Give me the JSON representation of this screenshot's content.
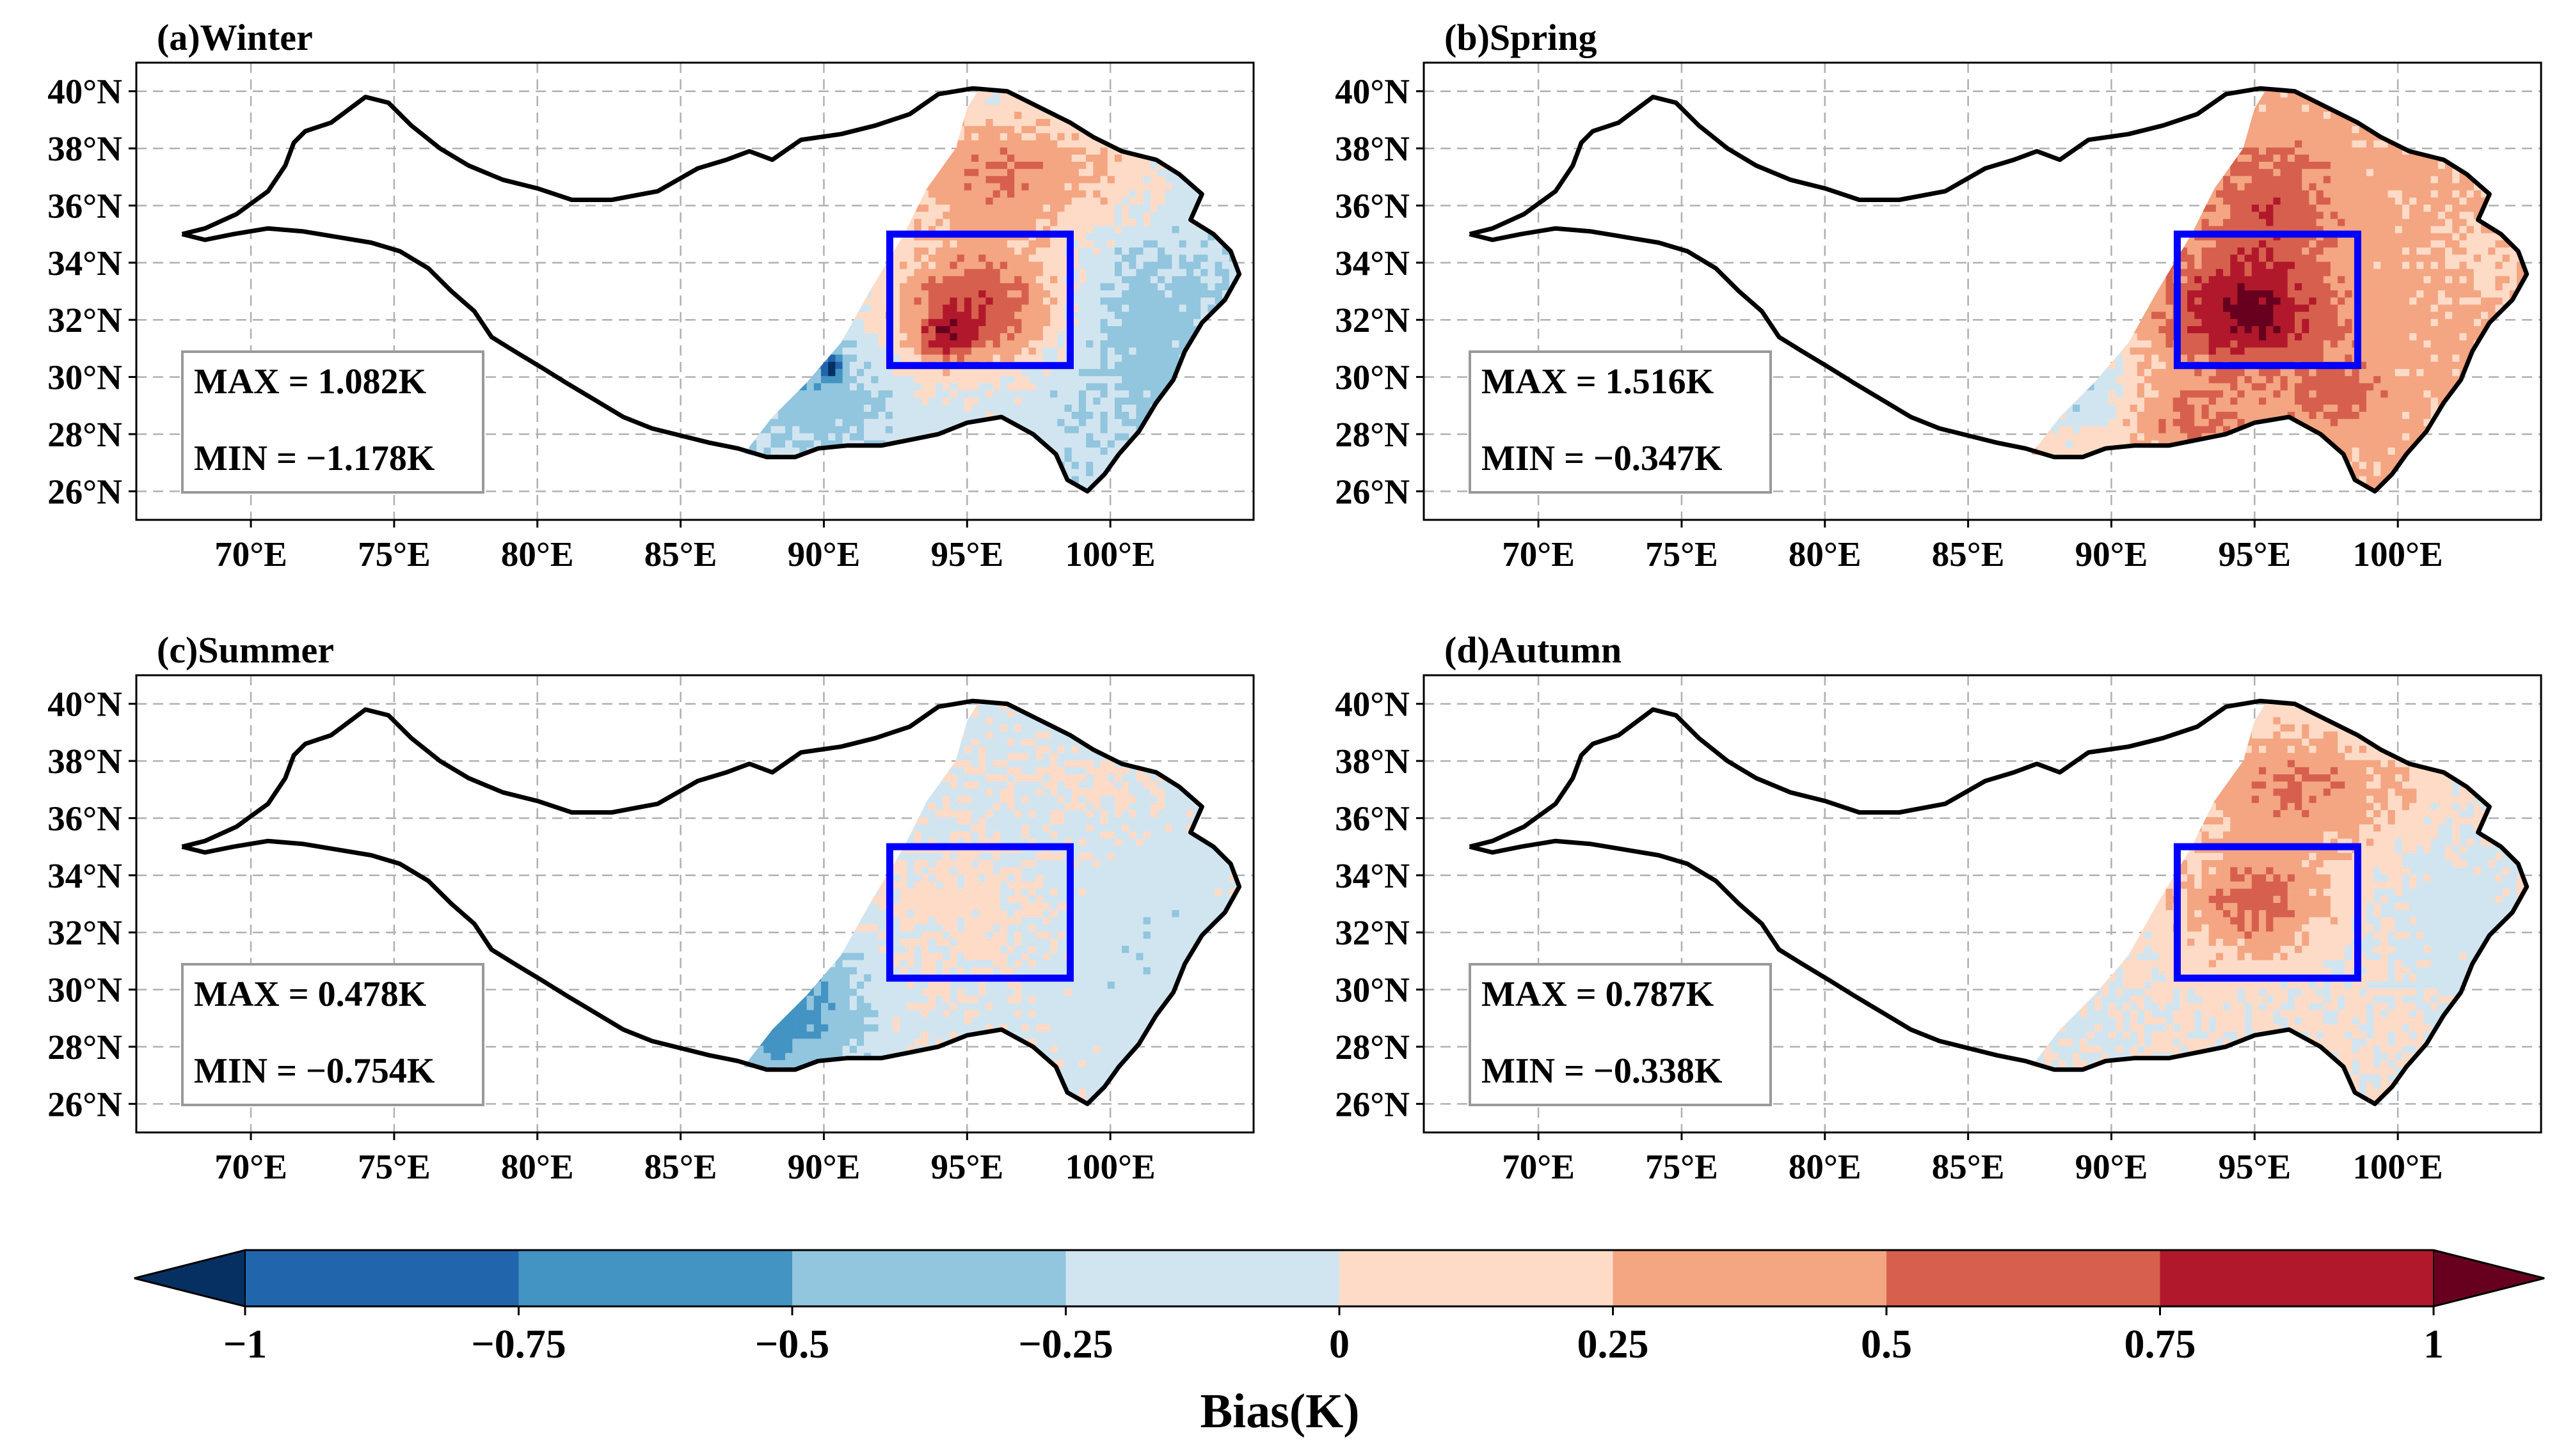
{
  "chart_data": {
    "type": "heatmap",
    "colorbar": {
      "label": "Bias(K)",
      "bounds": [
        -1,
        -0.75,
        -0.5,
        -0.25,
        0,
        0.25,
        0.5,
        0.75,
        1
      ],
      "tick_labels": [
        "−1",
        "−0.75",
        "−0.5",
        "−0.25",
        "0",
        "0.25",
        "0.5",
        "0.75",
        "1"
      ],
      "colors": [
        "#2166ac",
        "#4393c3",
        "#92c5de",
        "#d1e5f0",
        "#fddbc7",
        "#f4a582",
        "#d6604d",
        "#b2182b"
      ],
      "under_color": "#053061",
      "over_color": "#67001f"
    },
    "xlim": [
      66,
      105
    ],
    "ylim": [
      25,
      41
    ],
    "x_ticks": [
      70,
      75,
      80,
      85,
      90,
      95,
      100
    ],
    "x_tick_labels": [
      "70°E",
      "75°E",
      "80°E",
      "85°E",
      "90°E",
      "95°E",
      "100°E"
    ],
    "y_ticks": [
      26,
      28,
      30,
      32,
      34,
      36,
      38,
      40
    ],
    "y_tick_labels": [
      "26°N",
      "28°N",
      "30°N",
      "32°N",
      "34°N",
      "36°N",
      "38°N",
      "40°N"
    ],
    "grid": true,
    "region_box": {
      "lon": [
        92.3,
        98.6
      ],
      "lat": [
        30.4,
        35.0
      ],
      "color": "#0000ff"
    },
    "boundary": [
      [
        67.6,
        35.0
      ],
      [
        68.4,
        35.2
      ],
      [
        69.5,
        35.7
      ],
      [
        70.6,
        36.5
      ],
      [
        71.2,
        37.4
      ],
      [
        71.5,
        38.2
      ],
      [
        71.9,
        38.6
      ],
      [
        72.8,
        38.9
      ],
      [
        74.0,
        39.8
      ],
      [
        74.8,
        39.6
      ],
      [
        75.6,
        38.8
      ],
      [
        76.6,
        38.0
      ],
      [
        77.6,
        37.4
      ],
      [
        78.8,
        36.9
      ],
      [
        80.0,
        36.6
      ],
      [
        81.2,
        36.2
      ],
      [
        82.6,
        36.2
      ],
      [
        84.2,
        36.5
      ],
      [
        85.6,
        37.3
      ],
      [
        86.6,
        37.6
      ],
      [
        87.4,
        37.9
      ],
      [
        88.2,
        37.6
      ],
      [
        89.2,
        38.3
      ],
      [
        90.6,
        38.5
      ],
      [
        91.8,
        38.8
      ],
      [
        93.0,
        39.2
      ],
      [
        94.0,
        39.9
      ],
      [
        95.2,
        40.1
      ],
      [
        96.4,
        40.0
      ],
      [
        97.6,
        39.4
      ],
      [
        98.6,
        38.9
      ],
      [
        99.4,
        38.4
      ],
      [
        100.4,
        37.9
      ],
      [
        101.6,
        37.6
      ],
      [
        102.4,
        37.1
      ],
      [
        103.2,
        36.4
      ],
      [
        102.8,
        35.5
      ],
      [
        103.6,
        35.0
      ],
      [
        104.2,
        34.4
      ],
      [
        104.5,
        33.6
      ],
      [
        104.0,
        32.7
      ],
      [
        103.2,
        31.9
      ],
      [
        102.6,
        30.9
      ],
      [
        102.2,
        29.9
      ],
      [
        101.6,
        29.1
      ],
      [
        101.0,
        28.1
      ],
      [
        100.3,
        27.3
      ],
      [
        99.8,
        26.6
      ],
      [
        99.2,
        26.0
      ],
      [
        98.5,
        26.4
      ],
      [
        98.1,
        27.3
      ],
      [
        97.3,
        28.0
      ],
      [
        96.2,
        28.6
      ],
      [
        95.0,
        28.4
      ],
      [
        94.0,
        28.0
      ],
      [
        93.0,
        27.8
      ],
      [
        92.0,
        27.6
      ],
      [
        90.8,
        27.6
      ],
      [
        89.8,
        27.5
      ],
      [
        89.0,
        27.2
      ],
      [
        88.0,
        27.2
      ],
      [
        87.0,
        27.5
      ],
      [
        86.0,
        27.7
      ],
      [
        85.2,
        27.9
      ],
      [
        84.0,
        28.2
      ],
      [
        83.0,
        28.6
      ],
      [
        82.0,
        29.2
      ],
      [
        81.0,
        29.8
      ],
      [
        80.2,
        30.3
      ],
      [
        79.2,
        30.9
      ],
      [
        78.4,
        31.4
      ],
      [
        77.8,
        32.3
      ],
      [
        77.0,
        33.0
      ],
      [
        76.2,
        33.8
      ],
      [
        75.2,
        34.4
      ],
      [
        74.2,
        34.7
      ],
      [
        73.0,
        34.9
      ],
      [
        71.8,
        35.1
      ],
      [
        70.6,
        35.2
      ],
      [
        69.4,
        35.0
      ],
      [
        68.4,
        34.8
      ],
      [
        67.6,
        35.0
      ]
    ],
    "data_domain": [
      [
        87.2,
        27.3
      ],
      [
        88.2,
        28.6
      ],
      [
        89.4,
        29.8
      ],
      [
        90.6,
        31.2
      ],
      [
        91.6,
        33.0
      ],
      [
        92.8,
        35.0
      ],
      [
        93.6,
        36.6
      ],
      [
        94.6,
        38.0
      ],
      [
        95.0,
        39.4
      ],
      [
        95.4,
        40.05
      ],
      [
        96.4,
        40.0
      ],
      [
        97.6,
        39.4
      ],
      [
        98.6,
        38.9
      ],
      [
        99.4,
        38.4
      ],
      [
        100.4,
        37.9
      ],
      [
        101.6,
        37.6
      ],
      [
        102.4,
        37.1
      ],
      [
        103.2,
        36.4
      ],
      [
        102.8,
        35.5
      ],
      [
        103.6,
        35.0
      ],
      [
        104.2,
        34.4
      ],
      [
        104.5,
        33.6
      ],
      [
        104.0,
        32.7
      ],
      [
        103.2,
        31.9
      ],
      [
        102.6,
        30.9
      ],
      [
        102.2,
        29.9
      ],
      [
        101.6,
        29.1
      ],
      [
        101.0,
        28.1
      ],
      [
        100.3,
        27.3
      ],
      [
        99.8,
        26.6
      ],
      [
        99.2,
        26.0
      ],
      [
        98.5,
        26.4
      ],
      [
        98.1,
        27.3
      ],
      [
        97.3,
        28.0
      ],
      [
        96.2,
        28.6
      ],
      [
        95.0,
        28.4
      ],
      [
        94.0,
        28.0
      ],
      [
        93.0,
        27.8
      ],
      [
        92.0,
        27.6
      ],
      [
        90.8,
        27.6
      ],
      [
        89.8,
        27.5
      ],
      [
        89.0,
        27.2
      ],
      [
        88.0,
        27.2
      ]
    ],
    "panels": [
      {
        "title": "(a)Winter",
        "max_label": "MAX = 1.082K",
        "min_label": "MIN = −1.178K",
        "max": 1.082,
        "min": -1.178,
        "field": {
          "base": -0.12,
          "features": [
            {
              "lon": 95.5,
              "lat": 32.3,
              "amp": 0.85,
              "sx": 2.2,
              "sy": 1.5
            },
            {
              "lon": 96.5,
              "lat": 37.0,
              "amp": 0.62,
              "sx": 3.5,
              "sy": 1.8
            },
            {
              "lon": 101.0,
              "lat": 32.0,
              "amp": -0.28,
              "sx": 2.5,
              "sy": 3.0
            },
            {
              "lon": 89.5,
              "lat": 29.5,
              "amp": -0.33,
              "sx": 1.8,
              "sy": 1.5
            },
            {
              "lon": 90.3,
              "lat": 30.4,
              "amp": -0.9,
              "sx": 0.25,
              "sy": 0.25
            },
            {
              "lon": 94.2,
              "lat": 31.4,
              "amp": 0.55,
              "sx": 0.6,
              "sy": 0.6
            }
          ]
        }
      },
      {
        "title": "(b)Spring",
        "max_label": "MAX = 1.516K",
        "min_label": "MIN = −0.347K",
        "max": 1.516,
        "min": -0.347,
        "field": {
          "base": 0.33,
          "features": [
            {
              "lon": 94.8,
              "lat": 32.3,
              "amp": 0.75,
              "sx": 1.8,
              "sy": 1.3
            },
            {
              "lon": 95.6,
              "lat": 36.0,
              "amp": 0.35,
              "sx": 1.6,
              "sy": 1.4
            },
            {
              "lon": 97.8,
              "lat": 29.5,
              "amp": 0.3,
              "sx": 1.0,
              "sy": 0.8
            },
            {
              "lon": 89.0,
              "lat": 29.6,
              "amp": -0.55,
              "sx": 1.3,
              "sy": 1.6
            },
            {
              "lon": 93.0,
              "lat": 28.5,
              "amp": 0.25,
              "sx": 1.4,
              "sy": 0.6
            },
            {
              "lon": 103.0,
              "lat": 34.0,
              "amp": -0.15,
              "sx": 1.0,
              "sy": 1.5
            }
          ]
        }
      },
      {
        "title": "(c)Summer",
        "max_label": "MAX = 0.478K",
        "min_label": "MIN = −0.754K",
        "max": 0.478,
        "min": -0.754,
        "field": {
          "base": -0.05,
          "features": [
            {
              "lon": 89.2,
              "lat": 29.4,
              "amp": -0.5,
              "sx": 1.6,
              "sy": 1.8
            },
            {
              "lon": 95.0,
              "lat": 32.7,
              "amp": 0.14,
              "sx": 2.5,
              "sy": 1.6
            },
            {
              "lon": 99.0,
              "lat": 37.0,
              "amp": 0.1,
              "sx": 1.5,
              "sy": 1.0
            },
            {
              "lon": 101.0,
              "lat": 31.5,
              "amp": -0.12,
              "sx": 2.5,
              "sy": 3.0
            },
            {
              "lon": 88.0,
              "lat": 28.3,
              "amp": -0.25,
              "sx": 0.9,
              "sy": 0.8
            }
          ]
        }
      },
      {
        "title": "(d)Autumn",
        "max_label": "MAX = 0.787K",
        "min_label": "MIN = −0.338K",
        "max": 0.787,
        "min": -0.338,
        "field": {
          "base": 0.05,
          "features": [
            {
              "lon": 95.0,
              "lat": 33.0,
              "amp": 0.5,
              "sx": 1.8,
              "sy": 1.3
            },
            {
              "lon": 96.5,
              "lat": 37.0,
              "amp": 0.45,
              "sx": 2.8,
              "sy": 1.5
            },
            {
              "lon": 102.0,
              "lat": 32.5,
              "amp": -0.18,
              "sx": 2.0,
              "sy": 2.5
            },
            {
              "lon": 89.0,
              "lat": 28.3,
              "amp": -0.12,
              "sx": 1.2,
              "sy": 1.0
            }
          ]
        }
      }
    ]
  }
}
